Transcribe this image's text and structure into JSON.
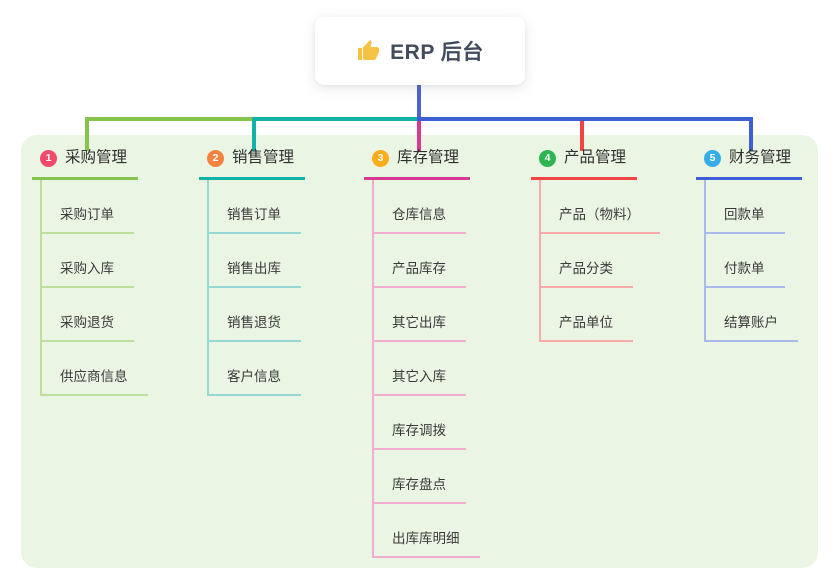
{
  "root": {
    "label": "ERP 后台",
    "icon": "thumbs-up-icon",
    "icon_color": "#f6c244"
  },
  "panel": {
    "background": "#eaf6e3"
  },
  "connector": {
    "stem_color": "#4f63cd"
  },
  "branches": [
    {
      "num": "1",
      "label": "采购管理",
      "badge_color": "#f24a6b",
      "line_color": "#85c54d",
      "light_color": "#bede9e",
      "children": [
        "采购订单",
        "采购入库",
        "采购退货",
        "供应商信息"
      ]
    },
    {
      "num": "2",
      "label": "销售管理",
      "badge_color": "#f8823f",
      "line_color": "#12b2a6",
      "light_color": "#96d9d3",
      "children": [
        "销售订单",
        "销售出库",
        "销售退货",
        "客户信息"
      ]
    },
    {
      "num": "3",
      "label": "库存管理",
      "badge_color": "#fcad19",
      "line_color": "#d63a92",
      "light_color": "#f3abd2",
      "children": [
        "仓库信息",
        "产品库存",
        "其它出库",
        "其它入库",
        "库存调拨",
        "库存盘点",
        "出库库明细"
      ]
    },
    {
      "num": "4",
      "label": "产品管理",
      "badge_color": "#2db551",
      "line_color": "#ef4545",
      "light_color": "#f9abab",
      "children": [
        "产品（物料）",
        "产品分类",
        "产品单位"
      ]
    },
    {
      "num": "5",
      "label": "财务管理",
      "badge_color": "#36ade6",
      "line_color": "#3e5ed6",
      "light_color": "#a9b9ea",
      "children": [
        "回款单",
        "付款单",
        "结算账户"
      ]
    }
  ]
}
